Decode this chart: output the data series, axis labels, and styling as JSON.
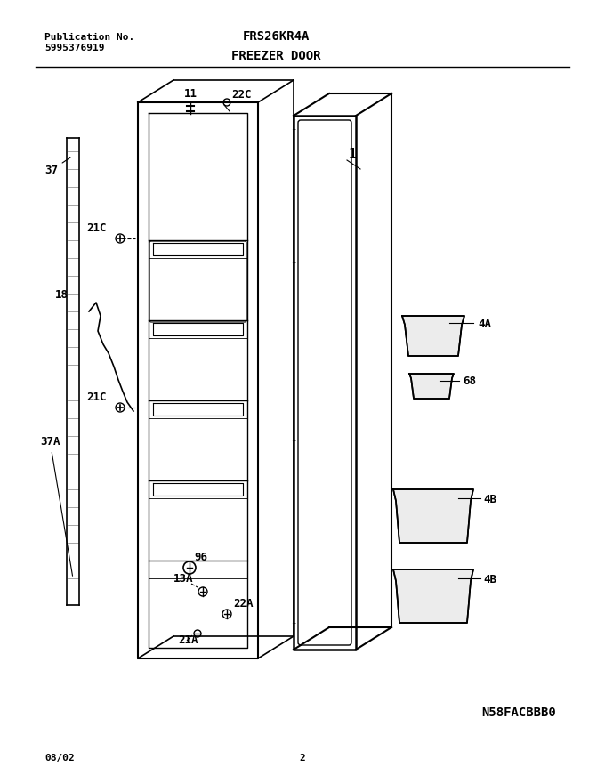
{
  "title_model": "FRS26KR4A",
  "title_section": "FREEZER DOOR",
  "pub_label": "Publication No.",
  "pub_number": "5995376919",
  "date_code": "08/02",
  "page_number": "2",
  "diagram_id": "N58FACBBB0",
  "bg_color": "#ffffff",
  "line_color": "#000000",
  "text_color": "#000000"
}
